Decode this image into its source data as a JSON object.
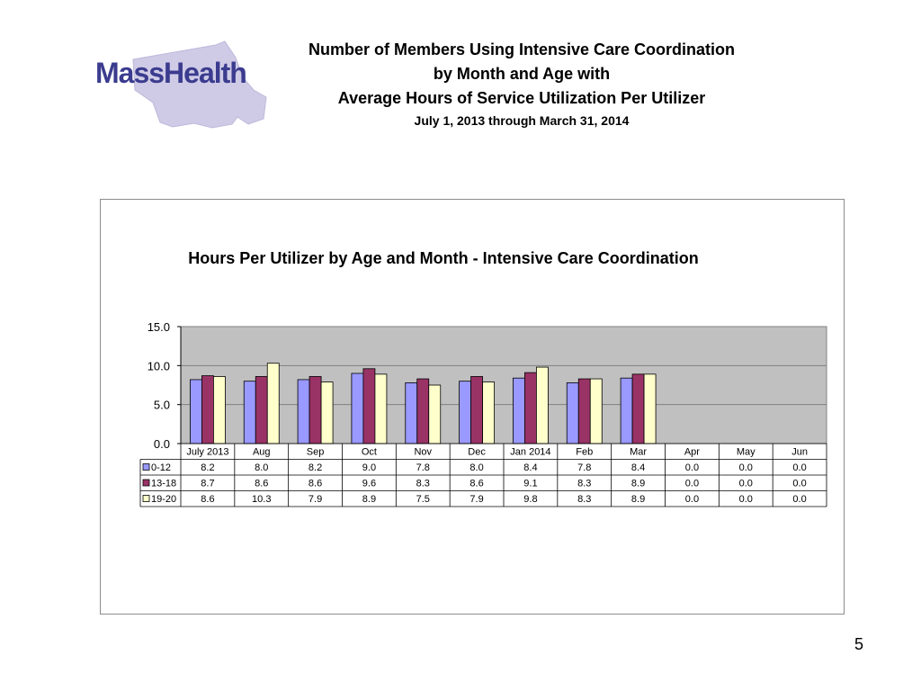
{
  "slide": {
    "logo_text": "MassHealth",
    "title_line1": "Number of Members Using Intensive Care Coordination",
    "title_line2": "by Month and Age with",
    "title_line3": "Average Hours of Service Utilization Per Utilizer",
    "subtitle": "July 1, 2013 through March 31, 2014",
    "page_number": "5"
  },
  "colors": {
    "plot_bg": "#c0c0c0",
    "series_0_12": "#9999ff",
    "series_13_18": "#993366",
    "series_19_20": "#ffffcc",
    "logo_text": "#3b3b8f",
    "logo_map": "#cfcbe6"
  },
  "chart_data": {
    "type": "bar",
    "title": "Hours Per Utilizer by Age and Month - Intensive Care Coordination",
    "categories": [
      "July 2013",
      "Aug",
      "Sep",
      "Oct",
      "Nov",
      "Dec",
      "Jan 2014",
      "Feb",
      "Mar",
      "Apr",
      "May",
      "Jun"
    ],
    "series": [
      {
        "name": "0-12",
        "values": [
          8.2,
          8.0,
          8.2,
          9.0,
          7.8,
          8.0,
          8.4,
          7.8,
          8.4,
          0.0,
          0.0,
          0.0
        ]
      },
      {
        "name": "13-18",
        "values": [
          8.7,
          8.6,
          8.6,
          9.6,
          8.3,
          8.6,
          9.1,
          8.3,
          8.9,
          0.0,
          0.0,
          0.0
        ]
      },
      {
        "name": "19-20",
        "values": [
          8.6,
          10.3,
          7.9,
          8.9,
          7.5,
          7.9,
          9.8,
          8.3,
          8.9,
          0.0,
          0.0,
          0.0
        ]
      }
    ],
    "ylim": [
      0,
      15
    ],
    "yticks": [
      "0.0",
      "5.0",
      "10.0",
      "15.0"
    ],
    "grid": true,
    "legend": "data-table"
  }
}
